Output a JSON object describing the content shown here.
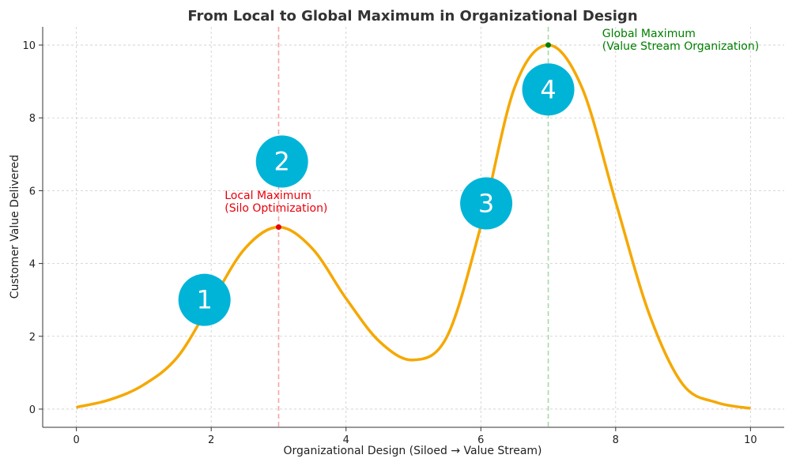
{
  "chart_data": {
    "type": "line",
    "title": "From Local to Global Maximum in Organizational Design",
    "xlabel": "Organizational Design (Siloed → Value Stream)",
    "ylabel": "Customer Value Delivered",
    "xlim": [
      -0.5,
      10.5
    ],
    "ylim": [
      -0.5,
      10.5
    ],
    "xticks": [
      0,
      2,
      4,
      6,
      8,
      10
    ],
    "yticks": [
      0,
      2,
      4,
      6,
      8,
      10
    ],
    "grid": true,
    "series": [
      {
        "color": "#f5a800",
        "x": [
          0,
          0.5,
          1,
          1.5,
          2,
          2.5,
          3,
          3.5,
          4,
          4.5,
          5,
          5.5,
          6,
          6.5,
          7,
          7.5,
          8,
          8.5,
          9,
          9.5,
          10
        ],
        "y": [
          0.05,
          0.26,
          0.67,
          1.43,
          2.93,
          4.41,
          5.0,
          4.41,
          3.04,
          1.85,
          1.35,
          2.0,
          5.03,
          8.83,
          10.0,
          8.83,
          5.69,
          2.6,
          0.67,
          0.18,
          0.02
        ]
      }
    ],
    "vlines": [
      {
        "x": 3,
        "color": "#f4a6a6"
      },
      {
        "x": 7,
        "color": "#a6d9a6"
      }
    ],
    "points": [
      {
        "x": 3,
        "y": 5,
        "color": "#e8000b"
      },
      {
        "x": 7,
        "y": 10,
        "color": "#008000"
      }
    ],
    "annotations": [
      {
        "x": 2.2,
        "y": 5.45,
        "lines": [
          "Local Maximum",
          "(Silo Optimization)"
        ],
        "color": "#e8000b"
      },
      {
        "x": 7.8,
        "y": 9.9,
        "lines": [
          "Global Maximum",
          "(Value Stream Organization)"
        ],
        "color": "#008000"
      }
    ],
    "markers": [
      {
        "label": "1",
        "x": 1.9,
        "y": 3.0
      },
      {
        "label": "2",
        "x": 3.05,
        "y": 6.8
      },
      {
        "label": "3",
        "x": 6.08,
        "y": 5.65
      },
      {
        "label": "4",
        "x": 7.0,
        "y": 8.78
      }
    ],
    "marker_color": "#00b4d8"
  }
}
